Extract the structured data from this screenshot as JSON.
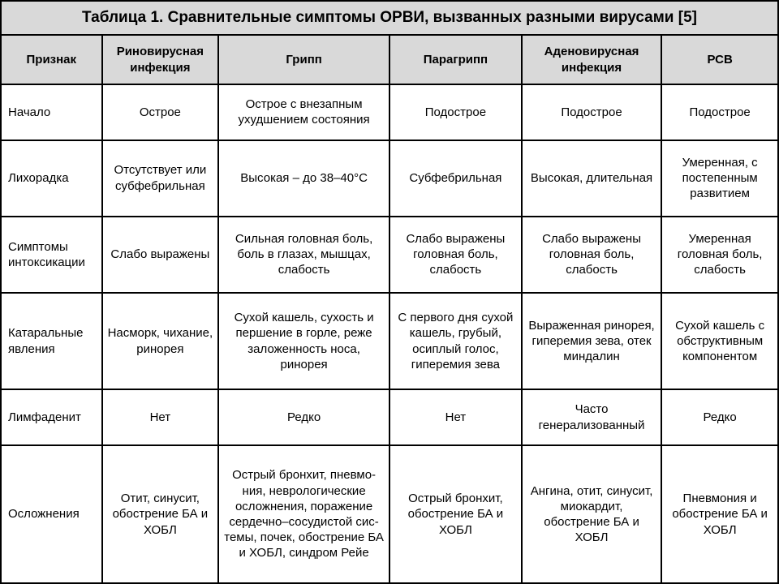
{
  "table": {
    "title": "Таблица 1. Сравнительные симптомы ОРВИ, вызванных разными вирусами [5]",
    "columns": [
      "Признак",
      "Риновирусная инфекция",
      "Грипп",
      "Парагрипп",
      "Аденовирусная инфекция",
      "РСВ"
    ],
    "col_widths_pct": [
      13,
      15,
      22,
      17,
      18,
      15
    ],
    "header_bg": "#d9d9d9",
    "border_color": "#000000",
    "background_color": "#ffffff",
    "text_color": "#000000",
    "title_fontsize": 19,
    "header_fontsize": 15,
    "cell_fontsize": 15,
    "rows": [
      {
        "label": "Начало",
        "cells": [
          "Острое",
          "Острое с внезапным ухудшением состояния",
          "Подострое",
          "Подострое",
          "Подострое"
        ]
      },
      {
        "label": "Лихорадка",
        "cells": [
          "Отсутствует или субфебрильная",
          "Высокая – до 38–40°С",
          "Субфебрильная",
          "Высокая, длительная",
          "Умеренная, с постепенным развитием"
        ]
      },
      {
        "label": "Симптомы интоксикации",
        "cells": [
          "Слабо выражены",
          "Сильная головная боль, боль в глазах, мышцах, слабость",
          "Слабо выражены головная боль, слабость",
          "Слабо выражены головная боль, слабость",
          "Умеренная головная боль, слабость"
        ]
      },
      {
        "label": "Катаральные явления",
        "cells": [
          "Насморк, чихание, ринорея",
          "Сухой кашель, сухость и першение в горле, реже заложенность носа, ринорея",
          "С первого дня сухой кашель, грубый, осиплый голос, гиперемия зева",
          "Выраженная ринорея, гиперемия зева, отек миндалин",
          "Сухой кашель с обструктивным компонентом"
        ]
      },
      {
        "label": "Лимфаденит",
        "cells": [
          "Нет",
          "Редко",
          "Нет",
          "Часто генерализованный",
          "Редко"
        ]
      },
      {
        "label": "Осложнения",
        "cells": [
          "Отит, синусит, обострение БА и ХОБЛ",
          "Острый бронхит, пневмо­ния, неврологические осложнения, поражение сердечно–сосудистой сис­темы, почек, обострение БА и ХОБЛ, синдром Рейе",
          "Острый бронхит, обострение БА и ХОБЛ",
          "Ангина, отит, синусит, миокардит, обострение БА и ХОБЛ",
          "Пневмония и обострение БА и ХОБЛ"
        ]
      }
    ]
  }
}
